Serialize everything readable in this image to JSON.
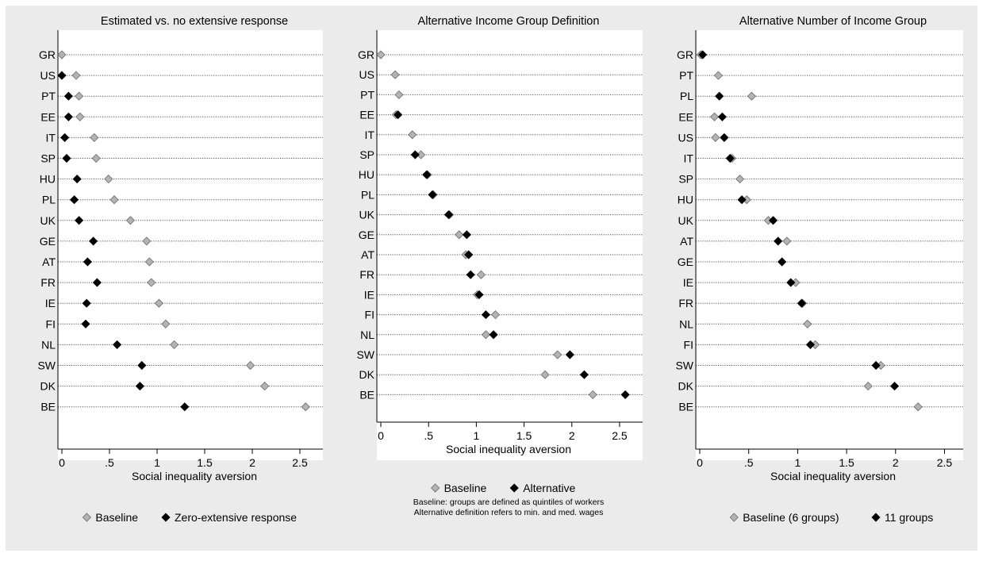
{
  "chart_data": [
    {
      "type": "scatter",
      "title": "Estimated vs. no extensive response",
      "xlabel": "Social inequality aversion",
      "xlim": [
        0,
        2.7
      ],
      "xticks": [
        0,
        0.5,
        1,
        1.5,
        2,
        2.5
      ],
      "xtick_labels": [
        "0",
        ".5",
        "1",
        "1.5",
        "2",
        "2.5"
      ],
      "grid": "dotted horizontal lines per country",
      "legend_position": "bottom",
      "categories": [
        "GR",
        "US",
        "PT",
        "EE",
        "IT",
        "SP",
        "HU",
        "PL",
        "UK",
        "GE",
        "AT",
        "FR",
        "IE",
        "FI",
        "NL",
        "SW",
        "DK",
        "BE"
      ],
      "series": [
        {
          "name": "Baseline",
          "color": "#b3b3b3",
          "marker": "diamond",
          "values": [
            0.0,
            0.15,
            0.18,
            0.19,
            0.34,
            0.36,
            0.49,
            0.55,
            0.72,
            0.89,
            0.92,
            0.94,
            1.02,
            1.09,
            1.18,
            1.98,
            2.13,
            2.56
          ]
        },
        {
          "name": "Zero-extensive response",
          "color": "#000000",
          "marker": "diamond",
          "values": [
            null,
            0.0,
            0.07,
            0.07,
            0.03,
            0.05,
            0.16,
            0.13,
            0.18,
            0.33,
            0.27,
            0.37,
            0.26,
            0.25,
            0.58,
            0.84,
            0.82,
            1.29
          ]
        }
      ]
    },
    {
      "type": "scatter",
      "title": "Alternative Income Group Definition",
      "xlabel": "Social inequality aversion",
      "xlim": [
        0,
        2.7
      ],
      "xticks": [
        0,
        0.5,
        1,
        1.5,
        2,
        2.5
      ],
      "xtick_labels": [
        "0",
        ".5",
        "1",
        "1.5",
        "2",
        "2.5"
      ],
      "grid": "dotted horizontal lines per country",
      "legend_position": "bottom",
      "note": [
        "Baseline: groups are defined as quintiles of workers",
        "Alternative definition refers to min. and med. wages"
      ],
      "categories": [
        "GR",
        "US",
        "PT",
        "EE",
        "IT",
        "SP",
        "HU",
        "PL",
        "UK",
        "GE",
        "AT",
        "FR",
        "IE",
        "FI",
        "NL",
        "SW",
        "DK",
        "BE"
      ],
      "series": [
        {
          "name": "Baseline",
          "color": "#b3b3b3",
          "marker": "diamond",
          "values": [
            0.0,
            0.15,
            0.19,
            0.16,
            0.33,
            0.42,
            0.49,
            0.55,
            0.72,
            0.82,
            0.89,
            1.05,
            1.01,
            1.2,
            1.1,
            1.85,
            1.72,
            2.22
          ]
        },
        {
          "name": "Alternative",
          "color": "#000000",
          "marker": "diamond",
          "values": [
            null,
            null,
            null,
            0.18,
            null,
            0.36,
            0.48,
            0.54,
            0.71,
            0.9,
            0.92,
            0.94,
            1.03,
            1.1,
            1.18,
            1.98,
            2.13,
            2.56
          ]
        }
      ]
    },
    {
      "type": "scatter",
      "title": "Alternative Number of Income Group",
      "xlabel": "Social inequality aversion",
      "xlim": [
        0,
        2.65
      ],
      "xticks": [
        0,
        0.5,
        1,
        1.5,
        2,
        2.5
      ],
      "xtick_labels": [
        "0",
        ".5",
        "1",
        "1.5",
        "2",
        "2.5"
      ],
      "grid": "dotted horizontal lines per country",
      "legend_position": "bottom",
      "categories": [
        "GR",
        "PT",
        "PL",
        "EE",
        "US",
        "IT",
        "SP",
        "HU",
        "UK",
        "AT",
        "GE",
        "IE",
        "FR",
        "NL",
        "FI",
        "SW",
        "DK",
        "BE"
      ],
      "series": [
        {
          "name": "Baseline (6 groups)",
          "color": "#b3b3b3",
          "marker": "diamond",
          "values": [
            0.01,
            0.19,
            0.53,
            0.15,
            0.16,
            0.33,
            0.41,
            0.48,
            0.7,
            0.89,
            0.84,
            0.98,
            1.05,
            1.1,
            1.18,
            1.85,
            1.72,
            2.23
          ]
        },
        {
          "name": "11 groups",
          "color": "#000000",
          "marker": "diamond",
          "values": [
            0.03,
            null,
            0.2,
            0.23,
            0.25,
            0.31,
            null,
            0.43,
            0.75,
            0.8,
            0.84,
            0.93,
            1.04,
            null,
            1.13,
            1.8,
            1.99,
            null
          ]
        }
      ]
    }
  ]
}
